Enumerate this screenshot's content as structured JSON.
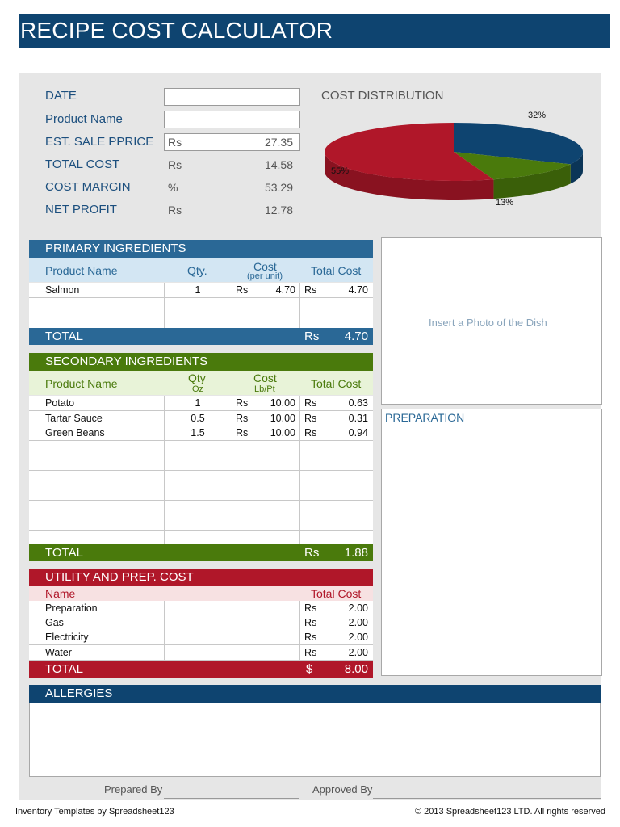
{
  "title": "RECIPE COST CALCULATOR",
  "summary": {
    "date_label": "DATE",
    "date_value": "",
    "product_name_label": "Product Name",
    "product_name_value": "",
    "sale_price_label": "EST. SALE PPRICE",
    "sale_price_currency": "Rs",
    "sale_price_value": "27.35",
    "total_cost_label": "TOTAL COST",
    "total_cost_currency": "Rs",
    "total_cost_value": "14.58",
    "cost_margin_label": "COST MARGIN",
    "cost_margin_unit": "%",
    "cost_margin_value": "53.29",
    "net_profit_label": "NET PROFIT",
    "net_profit_currency": "Rs",
    "net_profit_value": "12.78"
  },
  "chart_data": {
    "type": "pie",
    "title": "COST DISTRIBUTION",
    "slices": [
      {
        "label": "32%",
        "value": 32,
        "color": "#0e4470"
      },
      {
        "label": "13%",
        "value": 13,
        "color": "#4a7a0c"
      },
      {
        "label": "55%",
        "value": 55,
        "color": "#b01729"
      }
    ]
  },
  "primary": {
    "header": "PRIMARY INGREDIENTS",
    "col_name": "Product Name",
    "col_qty": "Qty.",
    "col_cost": "Cost",
    "col_cost_sub": "(per unit)",
    "col_total": "Total Cost",
    "rows": [
      {
        "name": "Salmon",
        "qty": "1",
        "cur1": "Rs",
        "cost": "4.70",
        "cur2": "Rs",
        "total": "4.70"
      }
    ],
    "total_label": "TOTAL",
    "total_currency": "Rs",
    "total_value": "4.70"
  },
  "secondary": {
    "header": "SECONDARY INGREDIENTS",
    "col_name": "Product Name",
    "col_qty": "Qty",
    "col_qty_sub": "Oz",
    "col_cost": "Cost",
    "col_cost_sub": "Lb/Pt",
    "col_total": "Total Cost",
    "rows": [
      {
        "name": "Potato",
        "qty": "1",
        "cur1": "Rs",
        "cost": "10.00",
        "cur2": "Rs",
        "total": "0.63"
      },
      {
        "name": "Tartar Sauce",
        "qty": "0.5",
        "cur1": "Rs",
        "cost": "10.00",
        "cur2": "Rs",
        "total": "0.31"
      },
      {
        "name": "Green Beans",
        "qty": "1.5",
        "cur1": "Rs",
        "cost": "10.00",
        "cur2": "Rs",
        "total": "0.94"
      }
    ],
    "total_label": "TOTAL",
    "total_currency": "Rs",
    "total_value": "1.88"
  },
  "utility": {
    "header": "UTILITY AND PREP. COST",
    "col_name": "Name",
    "col_total": "Total Cost",
    "rows": [
      {
        "name": "Preparation",
        "cur": "Rs",
        "total": "2.00"
      },
      {
        "name": "Gas",
        "cur": "Rs",
        "total": "2.00"
      },
      {
        "name": "Electricity",
        "cur": "Rs",
        "total": "2.00"
      },
      {
        "name": "Water",
        "cur": "Rs",
        "total": "2.00"
      }
    ],
    "total_label": "TOTAL",
    "total_currency": "$",
    "total_value": "8.00"
  },
  "photo_placeholder": "Insert a Photo of the Dish",
  "preparation_label": "PREPARATION",
  "allergies_label": "ALLERGIES",
  "prepared_by_label": "Prepared By",
  "approved_by_label": "Approved By",
  "footer_left": "Inventory Templates by Spreadsheet123",
  "footer_right": "© 2013 Spreadsheet123 LTD. All rights reserved",
  "colors": {
    "navy": "#0e4470",
    "blue_header": "#2a6896",
    "green": "#4a7a0c",
    "red": "#b01729"
  }
}
